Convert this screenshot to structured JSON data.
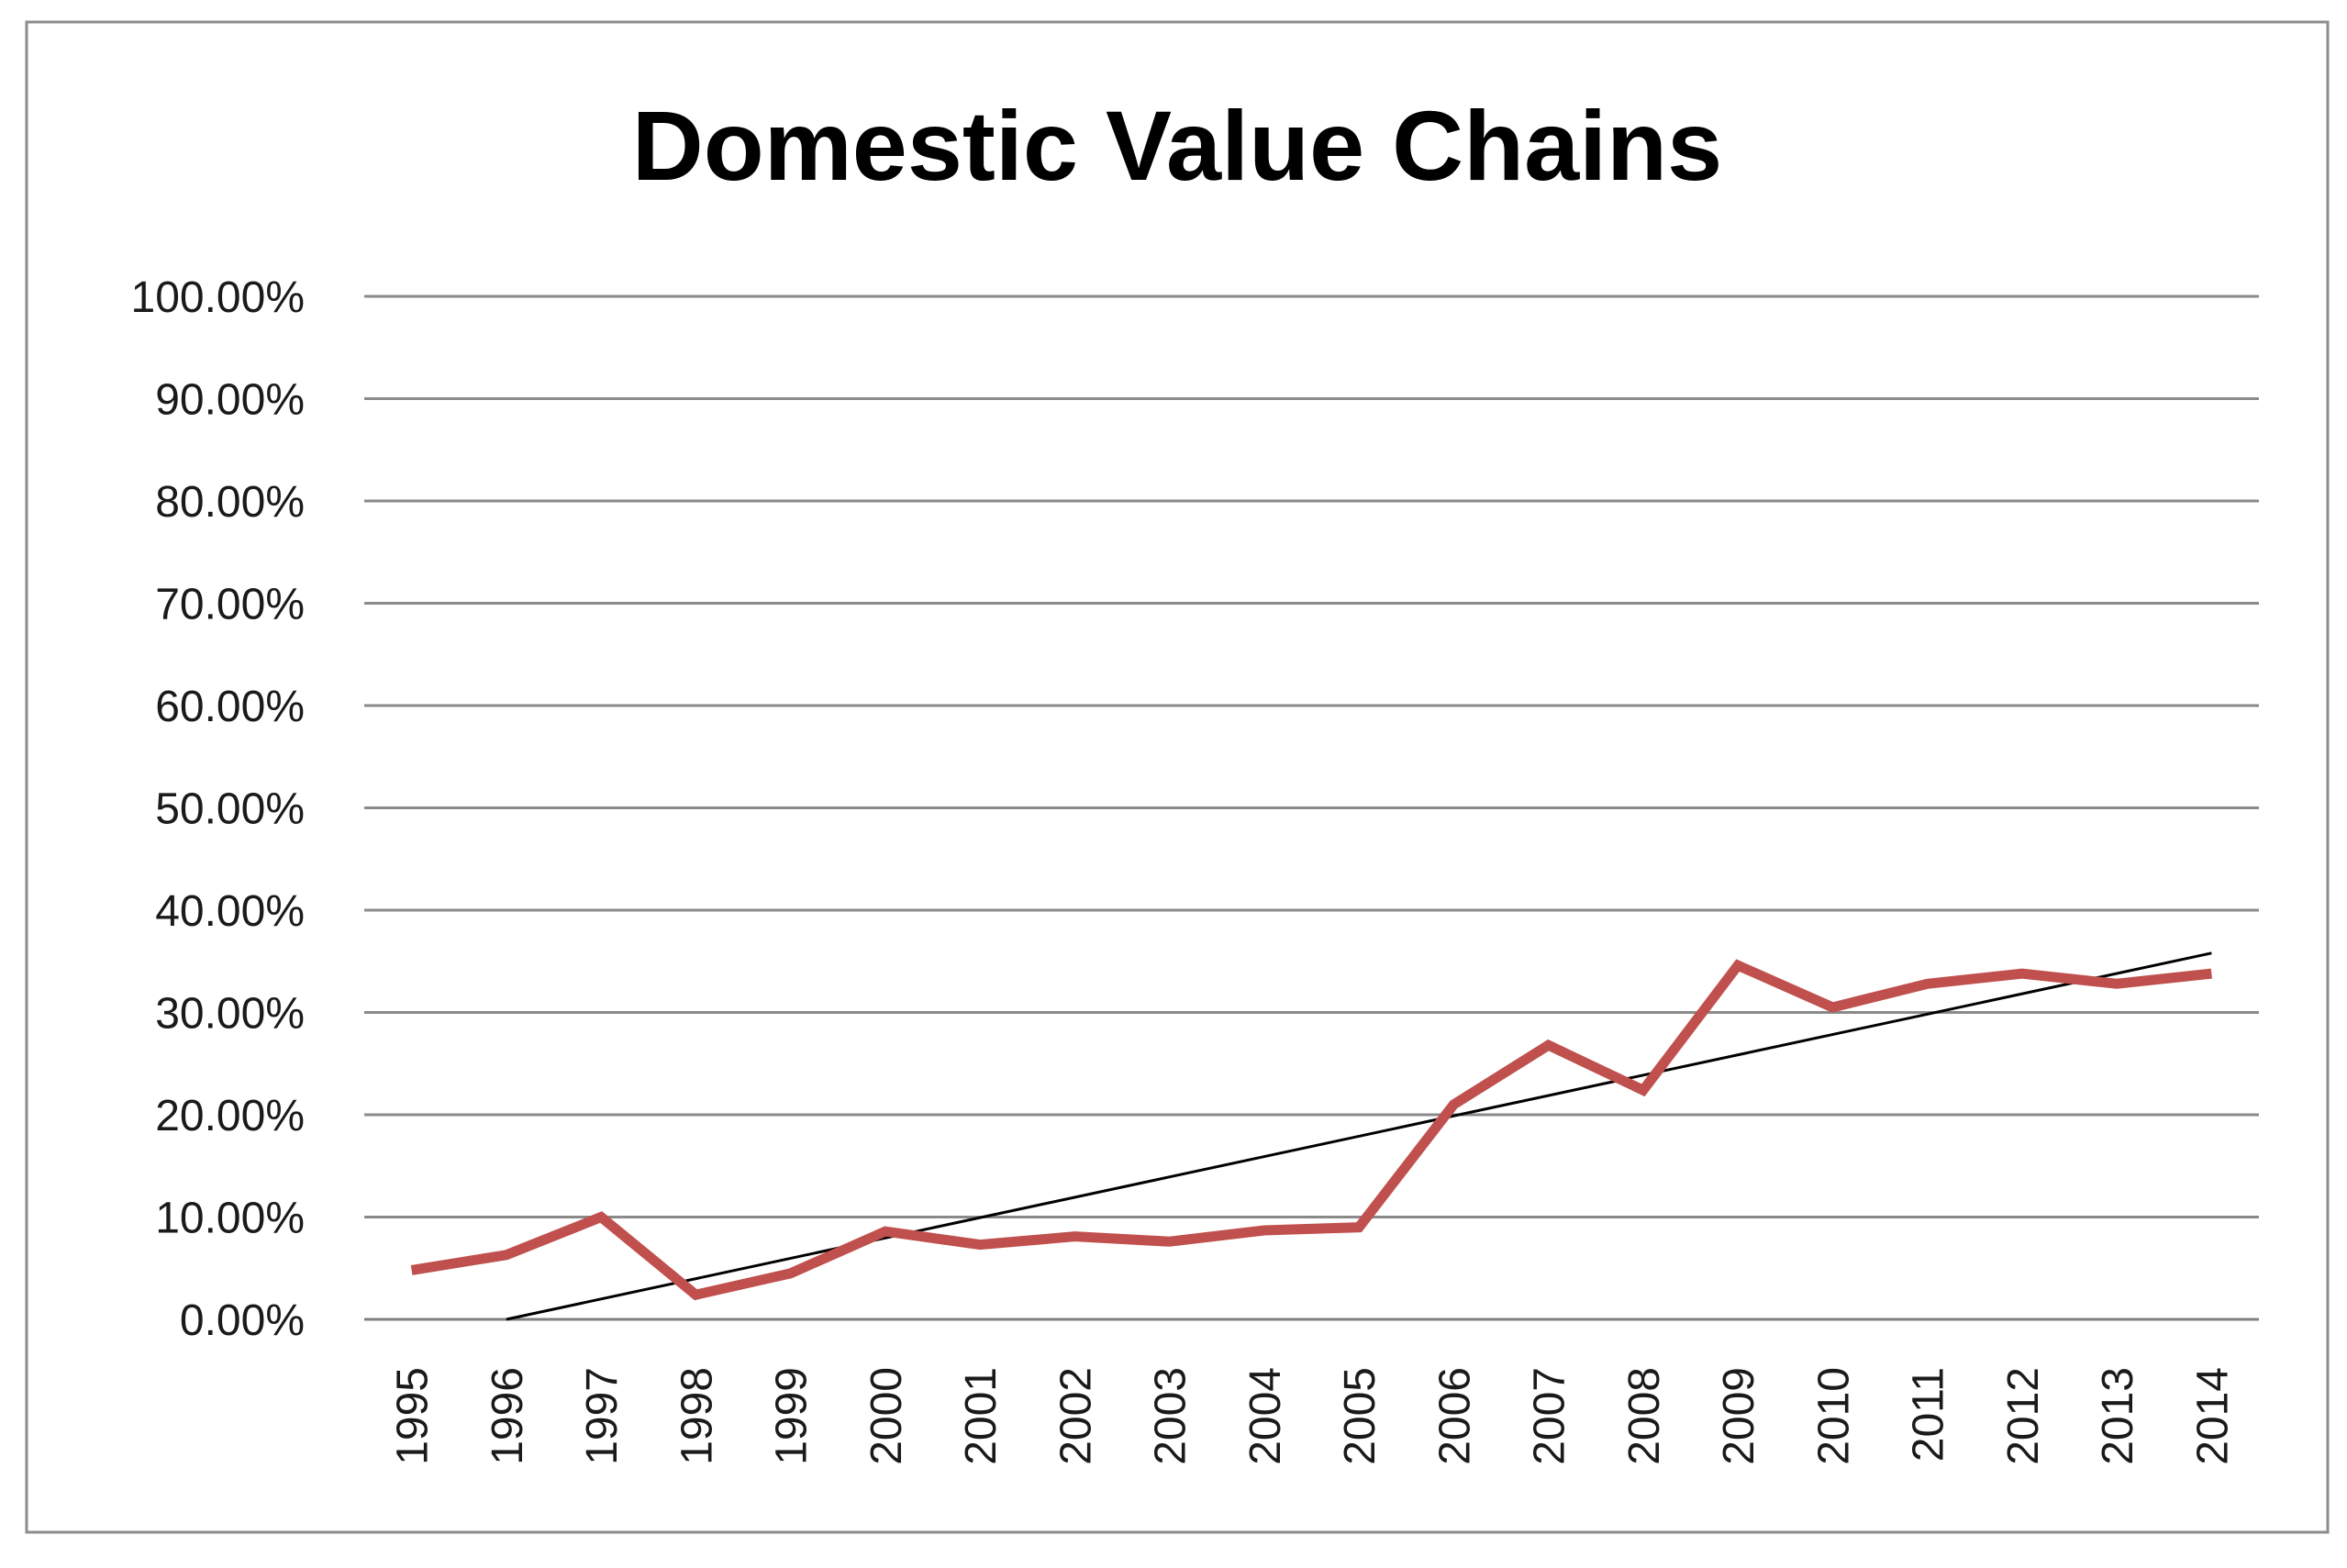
{
  "chart_data": {
    "type": "line",
    "title": "Domestic Value Chains",
    "xlabel": "",
    "ylabel": "",
    "ylim": [
      0,
      100
    ],
    "y_ticks": [
      "0.00%",
      "10.00%",
      "20.00%",
      "30.00%",
      "40.00%",
      "50.00%",
      "60.00%",
      "70.00%",
      "80.00%",
      "90.00%",
      "100.00%"
    ],
    "categories": [
      "1995",
      "1996",
      "1997",
      "1998",
      "1999",
      "2000",
      "2001",
      "2002",
      "2003",
      "2004",
      "2005",
      "2006",
      "2007",
      "2008",
      "2009",
      "2010",
      "2011",
      "2012",
      "2013",
      "2014"
    ],
    "series": [
      {
        "name": "Domestic Value Chains",
        "color": "#c0504d",
        "values": [
          4.8,
          6.3,
          10.0,
          2.4,
          4.5,
          8.6,
          7.3,
          8.1,
          7.6,
          8.7,
          9.0,
          21.0,
          26.8,
          22.4,
          34.6,
          30.5,
          32.8,
          33.8,
          32.8,
          33.8
        ]
      },
      {
        "name": "Linear trend",
        "color": "#000000",
        "trend": {
          "x_start": "1996",
          "y_start": 0.0,
          "x_end": "2014",
          "y_end": 35.8
        }
      }
    ],
    "grid": true,
    "legend": "none"
  }
}
